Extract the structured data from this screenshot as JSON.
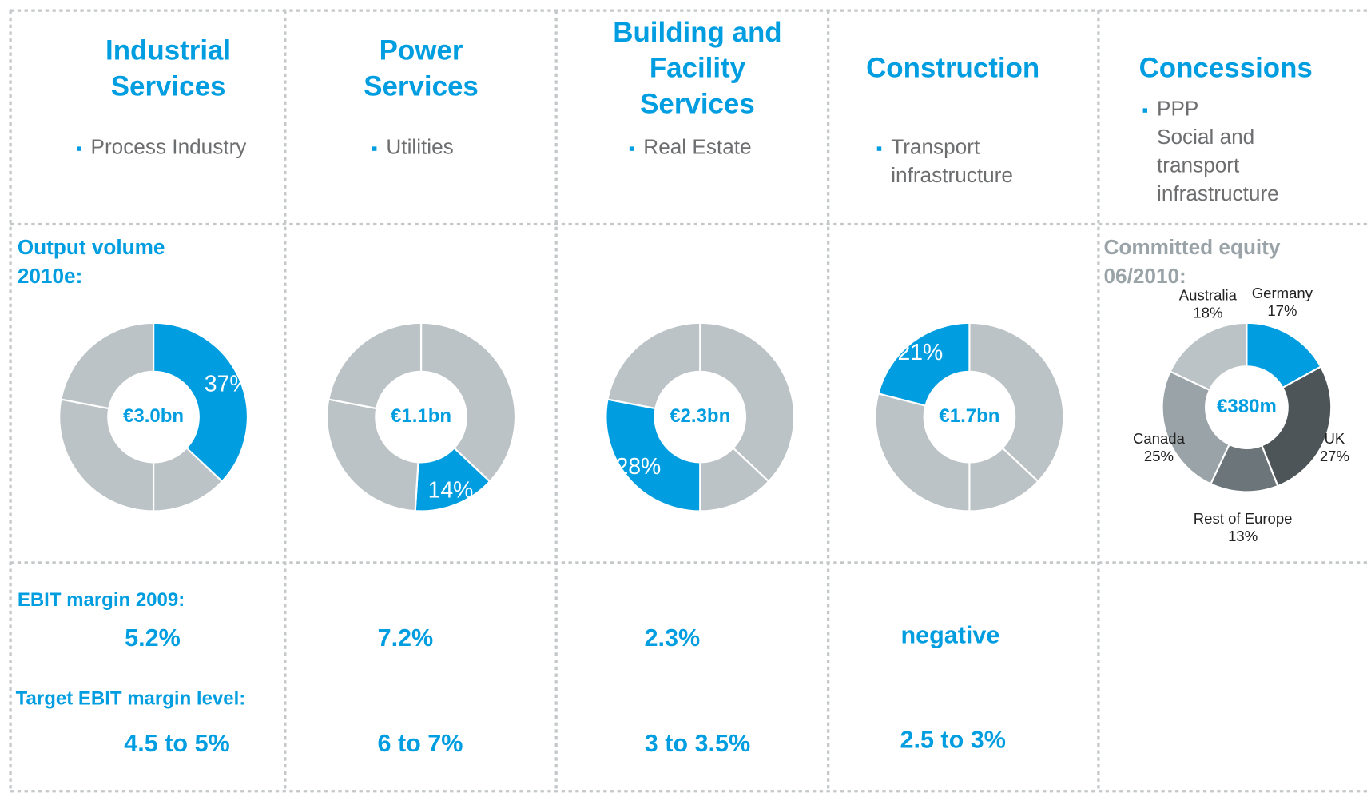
{
  "columns": [
    {
      "title": [
        "Industrial",
        "Services"
      ],
      "bullet": [
        "Process Industry"
      ],
      "ebit": "5.2%",
      "target": "4.5 to 5%"
    },
    {
      "title": [
        "Power",
        "Services"
      ],
      "bullet": [
        "Utilities"
      ],
      "ebit": "7.2%",
      "target": "6 to 7%"
    },
    {
      "title": [
        "Building and",
        "Facility",
        "Services"
      ],
      "bullet": [
        "Real Estate"
      ],
      "ebit": "2.3%",
      "target": "3 to 3.5%"
    },
    {
      "title": [
        "Construction"
      ],
      "bullet": [
        "Transport",
        "infrastructure"
      ],
      "ebit": "negative",
      "target": "2.5 to 3%"
    },
    {
      "title": [
        "Concessions"
      ],
      "bullet": [
        "PPP",
        "Social and",
        "transport",
        "infrastructure"
      ]
    }
  ],
  "labels": {
    "output": [
      "Output volume",
      "2010e:"
    ],
    "equity": [
      "Committed equity",
      "06/2010:"
    ],
    "ebit": "EBIT margin 2009:",
    "target": "Target EBIT margin level:"
  },
  "chart_data": [
    {
      "type": "pie",
      "donut": true,
      "center_label": "€3.0bn",
      "values": [
        37,
        13,
        28,
        22
      ],
      "value_labels": [
        "37%",
        null,
        null,
        null
      ],
      "colors": [
        "#009ee0",
        "#bcc3c6",
        "#bcc3c6",
        "#bcc3c6"
      ]
    },
    {
      "type": "pie",
      "donut": true,
      "center_label": "€1.1bn",
      "values": [
        37,
        14,
        27,
        22
      ],
      "value_labels": [
        null,
        "14%",
        null,
        null
      ],
      "colors": [
        "#bcc3c6",
        "#009ee0",
        "#bcc3c6",
        "#bcc3c6"
      ]
    },
    {
      "type": "pie",
      "donut": true,
      "center_label": "€2.3bn",
      "values": [
        37,
        13,
        28,
        22
      ],
      "value_labels": [
        null,
        null,
        "28%",
        null
      ],
      "colors": [
        "#bcc3c6",
        "#bcc3c6",
        "#009ee0",
        "#bcc3c6"
      ]
    },
    {
      "type": "pie",
      "donut": true,
      "center_label": "€1.7bn",
      "values": [
        37,
        13,
        29,
        21
      ],
      "value_labels": [
        null,
        null,
        null,
        "21%"
      ],
      "colors": [
        "#bcc3c6",
        "#bcc3c6",
        "#bcc3c6",
        "#009ee0"
      ]
    },
    {
      "type": "pie",
      "donut": true,
      "center_label": "€380m",
      "categories": [
        "Germany",
        "UK",
        "Rest of Europe",
        "Canada",
        "Australia"
      ],
      "values": [
        17,
        27,
        13,
        25,
        18
      ],
      "value_labels": [
        "17%",
        "27%",
        "13%",
        "25%",
        "18%"
      ],
      "colors": [
        "#009ee0",
        "#4d5559",
        "#6b757a",
        "#9aa3a7",
        "#bcc3c6"
      ]
    }
  ]
}
